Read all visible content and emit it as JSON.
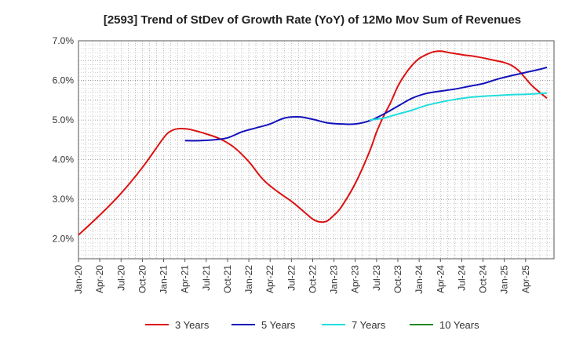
{
  "chart_data": {
    "type": "line",
    "title": "[2593]  Trend of StDev of Growth Rate (YoY) of 12Mo Mov Sum of Revenues",
    "xlabel": "",
    "ylabel": "",
    "x_labels": [
      "Jan-20",
      "Apr-20",
      "Jul-20",
      "Oct-20",
      "Jan-21",
      "Apr-21",
      "Jul-21",
      "Oct-21",
      "Jan-22",
      "Apr-22",
      "Jul-22",
      "Oct-22",
      "Jan-23",
      "Apr-23",
      "Jul-23",
      "Oct-23",
      "Jan-24",
      "Apr-24",
      "Jul-24",
      "Oct-24",
      "Jan-25",
      "Apr-25"
    ],
    "y_ticks": [
      "2.0%",
      "3.0%",
      "4.0%",
      "5.0%",
      "6.0%",
      "7.0%"
    ],
    "ylim": [
      1.5,
      7.0
    ],
    "x_count_months": 64,
    "grid": true,
    "legend_position": "bottom",
    "series": [
      {
        "name": "3 Years",
        "color": "#dd1111",
        "points": [
          [
            0,
            2.1
          ],
          [
            3,
            2.6
          ],
          [
            6,
            3.15
          ],
          [
            9,
            3.8
          ],
          [
            12,
            4.55
          ],
          [
            13,
            4.72
          ],
          [
            14,
            4.78
          ],
          [
            15,
            4.78
          ],
          [
            16,
            4.75
          ],
          [
            18,
            4.65
          ],
          [
            20,
            4.52
          ],
          [
            22,
            4.3
          ],
          [
            24,
            3.95
          ],
          [
            26,
            3.5
          ],
          [
            28,
            3.2
          ],
          [
            30,
            2.95
          ],
          [
            32,
            2.65
          ],
          [
            33,
            2.5
          ],
          [
            34,
            2.43
          ],
          [
            35,
            2.45
          ],
          [
            36,
            2.6
          ],
          [
            37,
            2.8
          ],
          [
            39,
            3.4
          ],
          [
            41,
            4.2
          ],
          [
            42,
            4.7
          ],
          [
            43,
            5.1
          ],
          [
            44,
            5.45
          ],
          [
            45,
            5.85
          ],
          [
            46,
            6.15
          ],
          [
            47,
            6.38
          ],
          [
            48,
            6.55
          ],
          [
            49,
            6.65
          ],
          [
            50,
            6.72
          ],
          [
            51,
            6.74
          ],
          [
            52,
            6.71
          ],
          [
            54,
            6.65
          ],
          [
            56,
            6.6
          ],
          [
            58,
            6.53
          ],
          [
            60,
            6.45
          ],
          [
            61,
            6.38
          ],
          [
            62,
            6.25
          ],
          [
            63,
            6.05
          ],
          [
            64,
            5.85
          ],
          [
            66,
            5.55
          ]
        ]
      },
      {
        "name": "5 Years",
        "color": "#1111bb",
        "points": [
          [
            15,
            4.48
          ],
          [
            17,
            4.48
          ],
          [
            19,
            4.5
          ],
          [
            21,
            4.55
          ],
          [
            23,
            4.7
          ],
          [
            25,
            4.8
          ],
          [
            27,
            4.9
          ],
          [
            29,
            5.05
          ],
          [
            31,
            5.08
          ],
          [
            33,
            5.02
          ],
          [
            35,
            4.93
          ],
          [
            37,
            4.9
          ],
          [
            39,
            4.9
          ],
          [
            41,
            4.98
          ],
          [
            43,
            5.15
          ],
          [
            45,
            5.35
          ],
          [
            47,
            5.55
          ],
          [
            49,
            5.67
          ],
          [
            51,
            5.73
          ],
          [
            53,
            5.78
          ],
          [
            55,
            5.85
          ],
          [
            57,
            5.92
          ],
          [
            59,
            6.03
          ],
          [
            61,
            6.12
          ],
          [
            63,
            6.2
          ],
          [
            65,
            6.28
          ],
          [
            66,
            6.33
          ]
        ]
      },
      {
        "name": "7 Years",
        "color": "#22dddd",
        "points": [
          [
            41,
            5.0
          ],
          [
            43,
            5.05
          ],
          [
            45,
            5.15
          ],
          [
            47,
            5.25
          ],
          [
            49,
            5.37
          ],
          [
            51,
            5.45
          ],
          [
            53,
            5.52
          ],
          [
            55,
            5.57
          ],
          [
            57,
            5.6
          ],
          [
            59,
            5.62
          ],
          [
            61,
            5.64
          ],
          [
            63,
            5.65
          ],
          [
            65,
            5.67
          ],
          [
            66,
            5.68
          ]
        ]
      },
      {
        "name": "10 Years",
        "color": "#228822",
        "points": []
      }
    ]
  }
}
